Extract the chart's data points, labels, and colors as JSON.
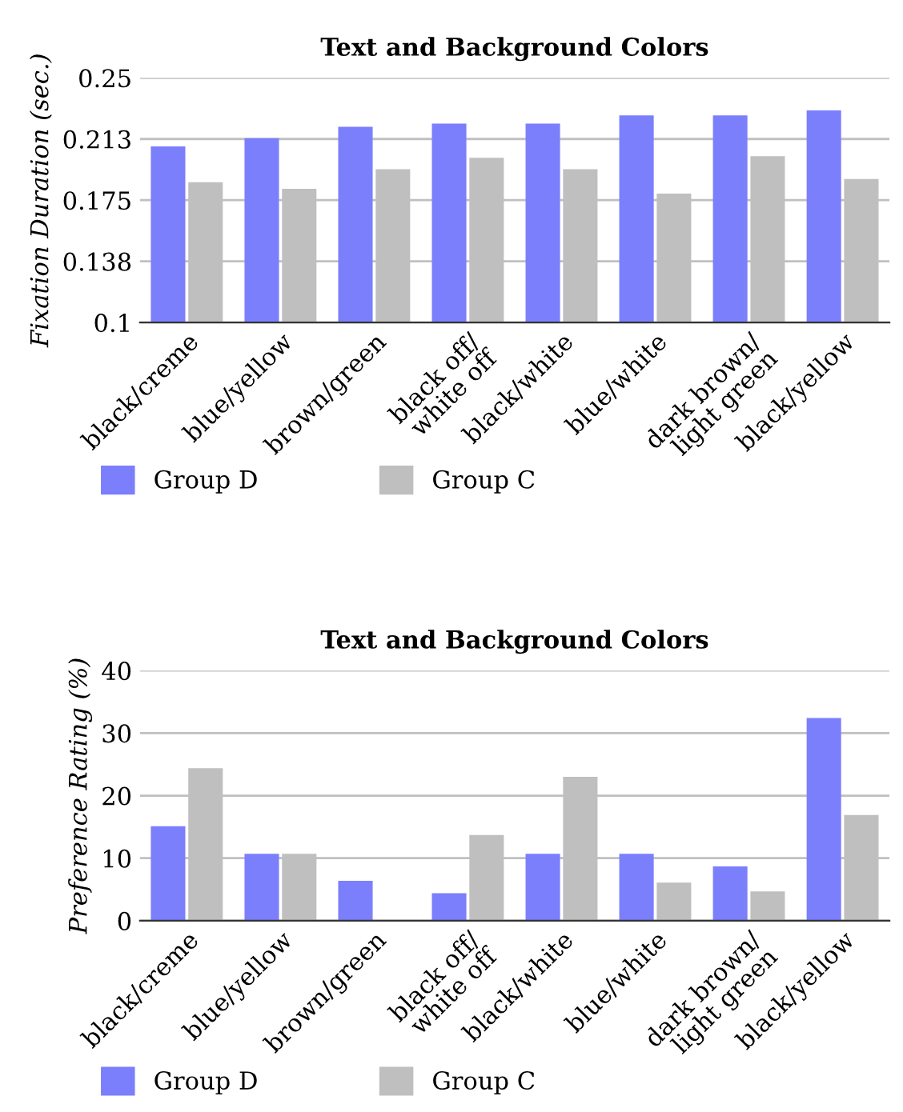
{
  "chart_data": [
    {
      "type": "bar",
      "title": "Text and Background Colors",
      "ylabel": "Fixation Duration (sec.)",
      "categories": [
        "black/creme",
        "blue/yellow",
        "brown/green",
        "black off/\nwhite off",
        "black/white",
        "blue/white",
        "dark brown/\nlight green",
        "black/yellow"
      ],
      "series": [
        {
          "name": "Group D",
          "color": "#7b7ffc",
          "values": [
            0.208,
            0.213,
            0.22,
            0.222,
            0.222,
            0.227,
            0.227,
            0.23
          ]
        },
        {
          "name": "Group C",
          "color": "#bfbfbf",
          "values": [
            0.186,
            0.182,
            0.194,
            0.201,
            0.194,
            0.179,
            0.202,
            0.188
          ]
        }
      ],
      "ylim": [
        0.1,
        0.25
      ],
      "yticks": [
        0.1,
        {
          "value": 0.1375,
          "label": "0.138"
        },
        0.175,
        {
          "value": 0.2125,
          "label": "0.213"
        },
        0.25
      ],
      "grid": "y",
      "legend": "bottom"
    },
    {
      "type": "bar",
      "title": "Text and Background Colors",
      "ylabel": "Preference Rating (%)",
      "categories": [
        "black/creme",
        "blue/yellow",
        "brown/green",
        "black off/\nwhite off",
        "black/white",
        "blue/white",
        "dark brown/\nlight green",
        "black/yellow"
      ],
      "series": [
        {
          "name": "Group D",
          "color": "#7b7ffc",
          "values": [
            15.1,
            10.7,
            6.4,
            4.4,
            10.7,
            10.7,
            8.7,
            32.4
          ]
        },
        {
          "name": "Group C",
          "color": "#bfbfbf",
          "values": [
            24.4,
            10.7,
            0,
            13.7,
            23.0,
            6.1,
            4.7,
            16.9
          ]
        }
      ],
      "ylim": [
        0,
        40
      ],
      "yticks": [
        0,
        10,
        20,
        30,
        40
      ],
      "grid": "y",
      "legend": "bottom"
    }
  ]
}
